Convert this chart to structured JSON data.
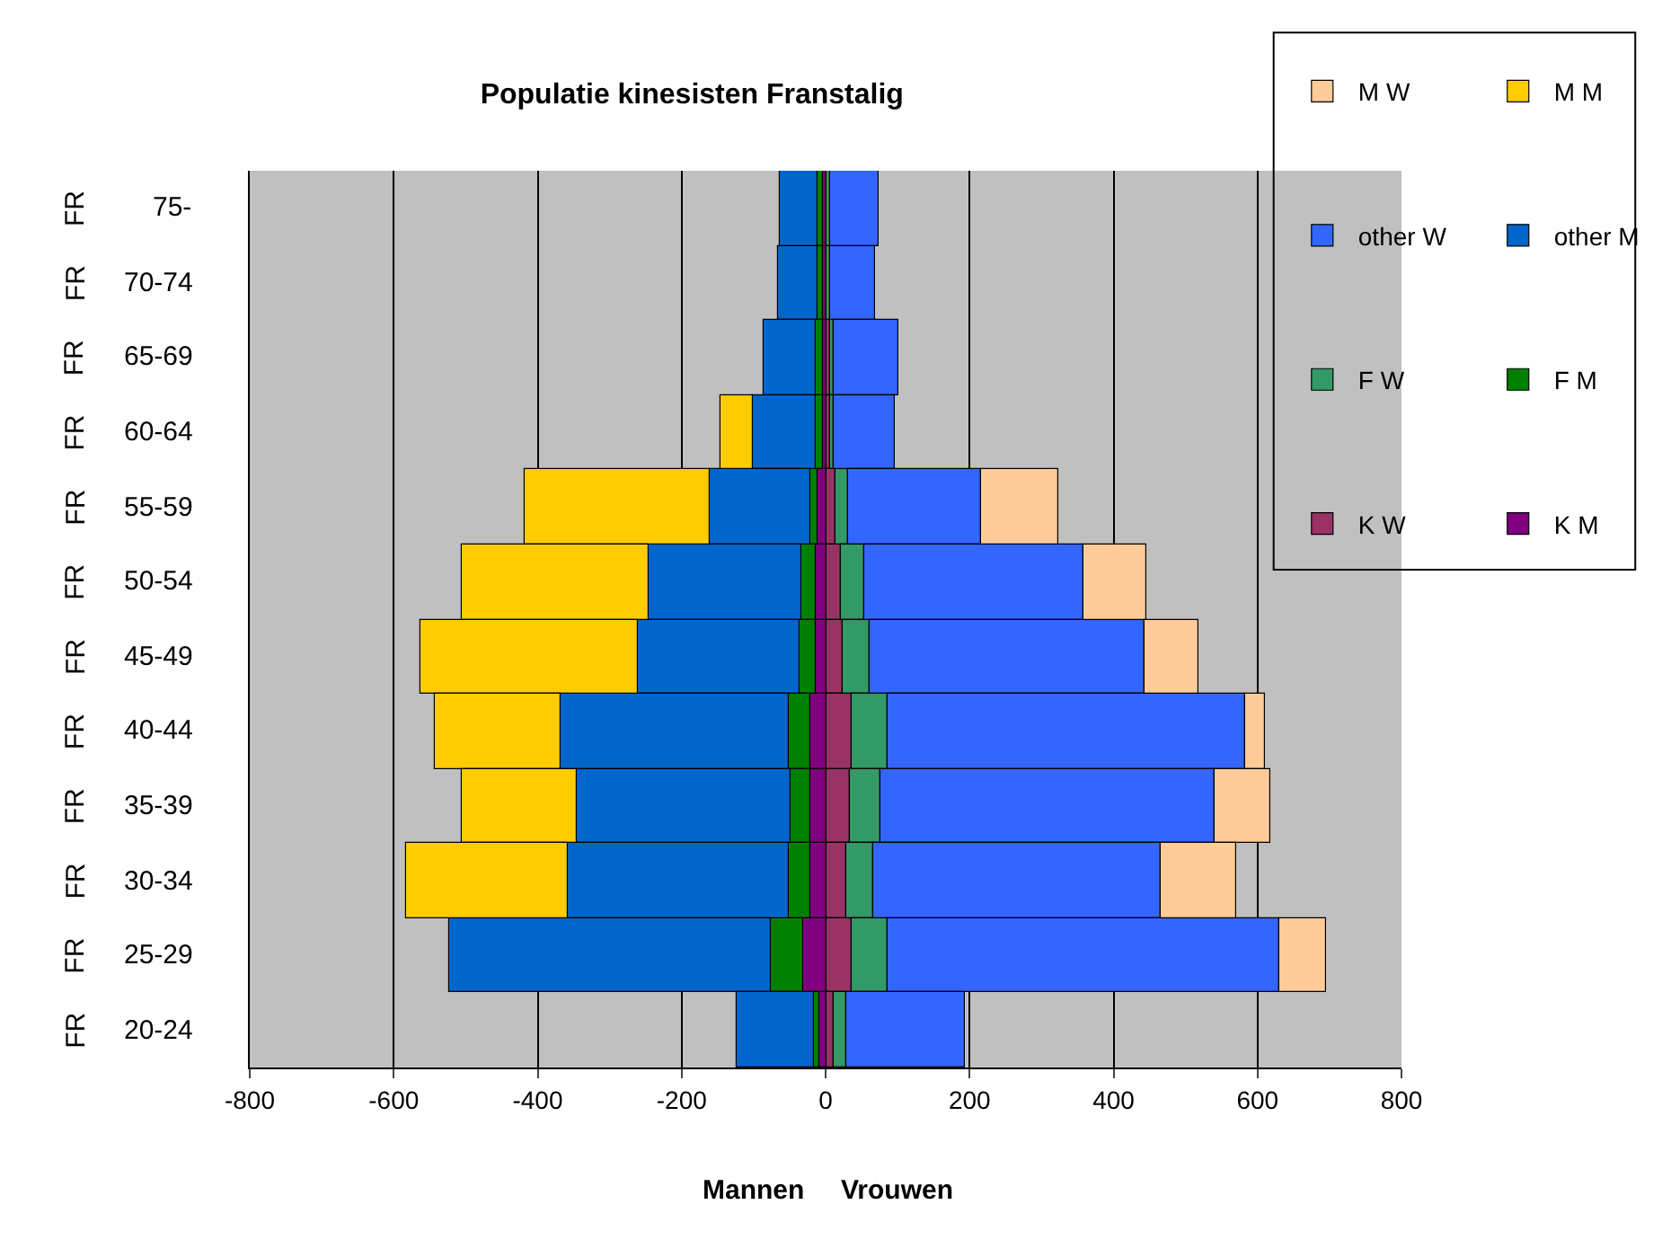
{
  "chart_data": {
    "type": "bar",
    "orientation": "horizontal",
    "stacked": true,
    "title": "Populatie kinesisten Franstalig",
    "annotations": [
      "Mannen",
      "Vrouwen"
    ],
    "categories": [
      "FR 75-",
      "FR 70-74",
      "FR 65-69",
      "FR 60-64",
      "FR 55-59",
      "FR 50-54",
      "FR 45-49",
      "FR 40-44",
      "FR 35-39",
      "FR 30-34",
      "FR 25-29",
      "FR 20-24"
    ],
    "series": [
      {
        "name": "K M",
        "color": "#800080",
        "values": [
          -4,
          -4,
          -5,
          -5,
          -10,
          -14,
          -14,
          -21,
          -21,
          -21,
          -30,
          -8
        ]
      },
      {
        "name": "K W",
        "color": "#993366",
        "values": [
          2,
          2,
          5,
          5,
          14,
          22,
          24,
          35,
          33,
          29,
          37,
          10
        ]
      },
      {
        "name": "F M",
        "color": "#008000",
        "values": [
          -6,
          -6,
          -9,
          -9,
          -11,
          -19,
          -23,
          -31,
          -28,
          -31,
          -47,
          -8
        ]
      },
      {
        "name": "F W",
        "color": "#339966",
        "values": [
          3,
          3,
          7,
          7,
          16,
          31,
          38,
          50,
          44,
          36,
          50,
          19
        ]
      },
      {
        "name": "other M",
        "color": "#0066cc",
        "values": [
          -53,
          -55,
          -71,
          -87,
          -139,
          -212,
          -225,
          -316,
          -296,
          -307,
          -447,
          -107
        ]
      },
      {
        "name": "other W",
        "color": "#3366ff",
        "values": [
          68,
          64,
          88,
          85,
          185,
          306,
          382,
          497,
          463,
          401,
          544,
          165
        ]
      },
      {
        "name": "M M",
        "color": "#ffcc00",
        "values": [
          null,
          null,
          null,
          -46,
          -258,
          -260,
          -302,
          -176,
          -160,
          -225,
          null,
          null
        ]
      },
      {
        "name": "M W",
        "color": "#ffcc99",
        "values": [
          null,
          null,
          null,
          null,
          109,
          87,
          74,
          29,
          79,
          105,
          63,
          null
        ]
      }
    ],
    "xlim": [
      -800,
      800
    ],
    "xticks": [
      -800,
      -600,
      -400,
      -200,
      0,
      200,
      400,
      600,
      800
    ],
    "grid": "x",
    "legend": "top right"
  }
}
